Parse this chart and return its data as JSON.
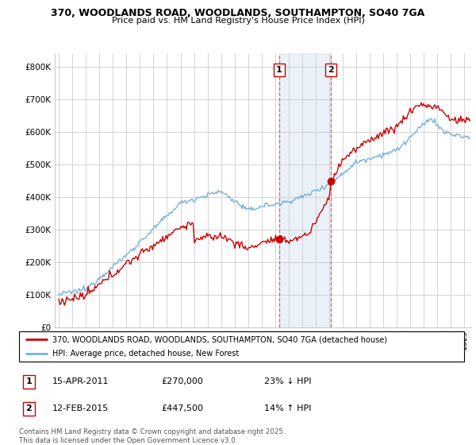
{
  "title1": "370, WOODLANDS ROAD, WOODLANDS, SOUTHAMPTON, SO40 7GA",
  "title2": "Price paid vs. HM Land Registry's House Price Index (HPI)",
  "ylabel_ticks": [
    "£0",
    "£100K",
    "£200K",
    "£300K",
    "£400K",
    "£500K",
    "£600K",
    "£700K",
    "£800K"
  ],
  "ytick_vals": [
    0,
    100000,
    200000,
    300000,
    400000,
    500000,
    600000,
    700000,
    800000
  ],
  "ylim": [
    0,
    840000
  ],
  "xlim_start": 1994.7,
  "xlim_end": 2025.5,
  "purchase1_x": 2011.29,
  "purchase1_y": 270000,
  "purchase2_x": 2015.12,
  "purchase2_y": 447500,
  "legend_line1": "370, WOODLANDS ROAD, WOODLANDS, SOUTHAMPTON, SO40 7GA (detached house)",
  "legend_line2": "HPI: Average price, detached house, New Forest",
  "purchase1_date": "15-APR-2011",
  "purchase1_price": "£270,000",
  "purchase1_hpi": "23% ↓ HPI",
  "purchase2_date": "12-FEB-2015",
  "purchase2_price": "£447,500",
  "purchase2_hpi": "14% ↑ HPI",
  "footer": "Contains HM Land Registry data © Crown copyright and database right 2025.\nThis data is licensed under the Open Government Licence v3.0.",
  "line_color_red": "#cc0000",
  "line_color_blue": "#7ab0d4",
  "grid_color": "#cccccc",
  "shade_color": "#dce9f5"
}
